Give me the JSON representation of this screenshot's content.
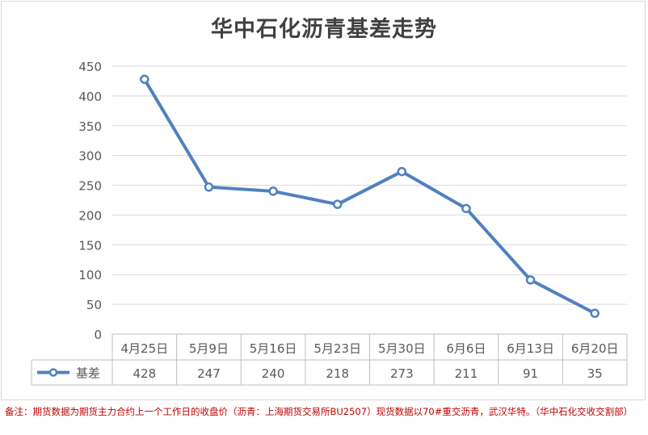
{
  "chart_data": {
    "type": "line",
    "title": "华中石化沥青基差走势",
    "categories": [
      "4月25日",
      "5月9日",
      "5月16日",
      "5月23日",
      "5月30日",
      "6月6日",
      "6月13日",
      "6月20日"
    ],
    "series": [
      {
        "name": "基差",
        "values": [
          428,
          247,
          240,
          218,
          273,
          211,
          91,
          35
        ]
      }
    ],
    "y_ticks": [
      "450",
      "400",
      "350",
      "300",
      "250",
      "200",
      "150",
      "100",
      "50",
      "0"
    ],
    "ylim": [
      0,
      450
    ],
    "grid": true,
    "legend": "data-table",
    "colors": {
      "line": "#4f81bd",
      "marker_fill": "#ffffff",
      "grid": "#d9d9d9",
      "axis_text": "#595959",
      "title": "#404040"
    }
  },
  "footnote": "备注：期货数据为期货主力合约上一个工作日的收盘价（沥青：上海期货交易所BU2507）现货数据以70#重交沥青，武汉华特。（华中石化交收交割部）"
}
